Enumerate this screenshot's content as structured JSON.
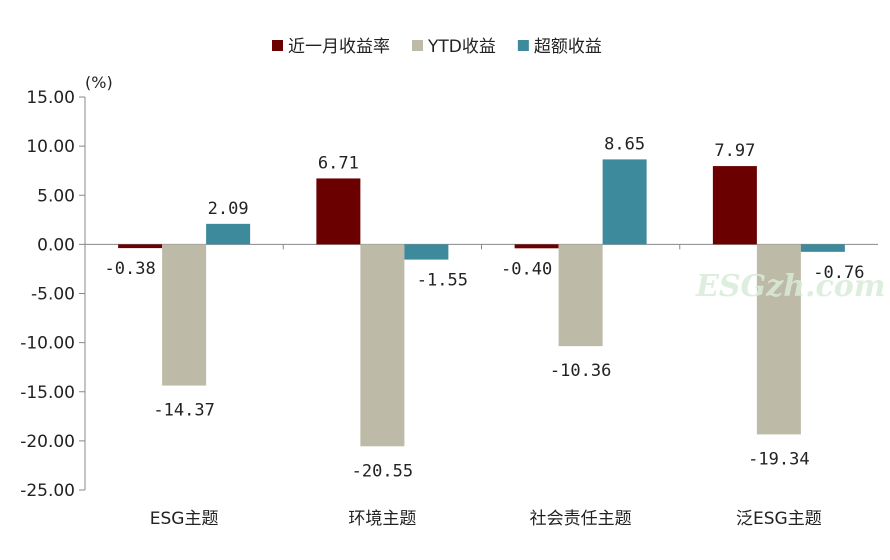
{
  "chart_data": {
    "type": "bar",
    "y_unit": "(%)",
    "categories": [
      "ESG主题",
      "环境主题",
      "社会责任主题",
      "泛ESG主题"
    ],
    "series": [
      {
        "name": "近一月收益率",
        "color": "#6b0000",
        "values": [
          -0.38,
          6.71,
          -0.4,
          7.97
        ],
        "labels": [
          "-0.38",
          "6.71",
          "-0.40",
          "7.97"
        ]
      },
      {
        "name": "YTD收益",
        "color": "#bdbaa8",
        "values": [
          -14.37,
          -20.55,
          -10.36,
          -19.34
        ],
        "labels": [
          "-14.37",
          "-20.55",
          "-10.36",
          "-19.34"
        ]
      },
      {
        "name": "超额收益",
        "color": "#3d8a9c",
        "values": [
          2.09,
          -1.55,
          8.65,
          -0.76
        ],
        "labels": [
          "2.09",
          "-1.55",
          "8.65",
          "-0.76"
        ]
      }
    ],
    "ylim": [
      -25,
      15
    ],
    "yticks": [
      "15.00",
      "10.00",
      "5.00",
      "0.00",
      "-5.00",
      "-10.00",
      "-15.00",
      "-20.00",
      "-25.00"
    ],
    "ytick_values": [
      15,
      10,
      5,
      0,
      -5,
      -10,
      -15,
      -20,
      -25
    ],
    "grid": false,
    "legend_position": "top-center",
    "watermark": "ESGzh.com"
  }
}
